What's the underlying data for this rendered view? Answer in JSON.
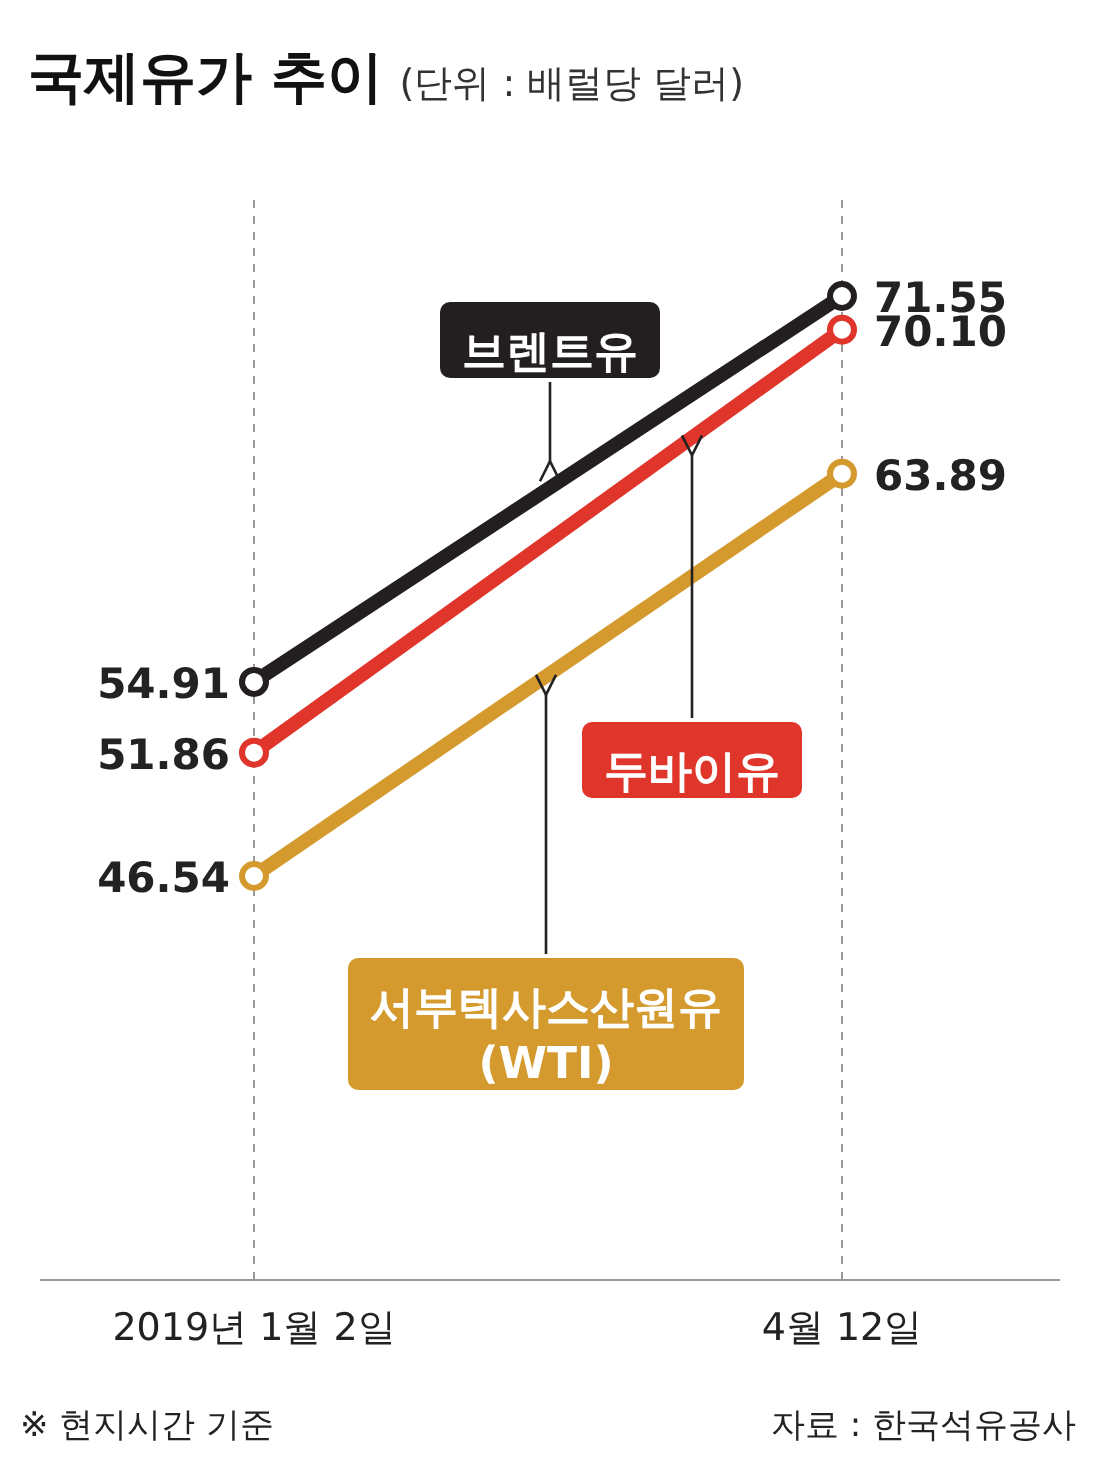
{
  "chart_data": {
    "type": "line",
    "title": "국제유가 추이",
    "subtitle": "(단위 : 배럴당 달러)",
    "categories": [
      "2019년 1월 2일",
      "4월 12일"
    ],
    "series": [
      {
        "name": "브렌트유",
        "color": "#231f20",
        "values": [
          54.91,
          71.55
        ],
        "value_labels": [
          "54.91",
          "71.55"
        ]
      },
      {
        "name": "두바이유",
        "color": "#e0352b",
        "values": [
          51.86,
          70.1
        ],
        "value_labels": [
          "51.86",
          "70.10"
        ]
      },
      {
        "name": "서부텍사스산원유 (WTI)",
        "color": "#d49a2e",
        "values": [
          46.54,
          63.89
        ],
        "value_labels": [
          "46.54",
          "63.89"
        ]
      }
    ],
    "marker": "circle",
    "line_style": "solid",
    "grid": "x",
    "legend": false,
    "annotations": [
      "※ 현지시간 기준",
      "자료 : 한국석유공사"
    ]
  }
}
